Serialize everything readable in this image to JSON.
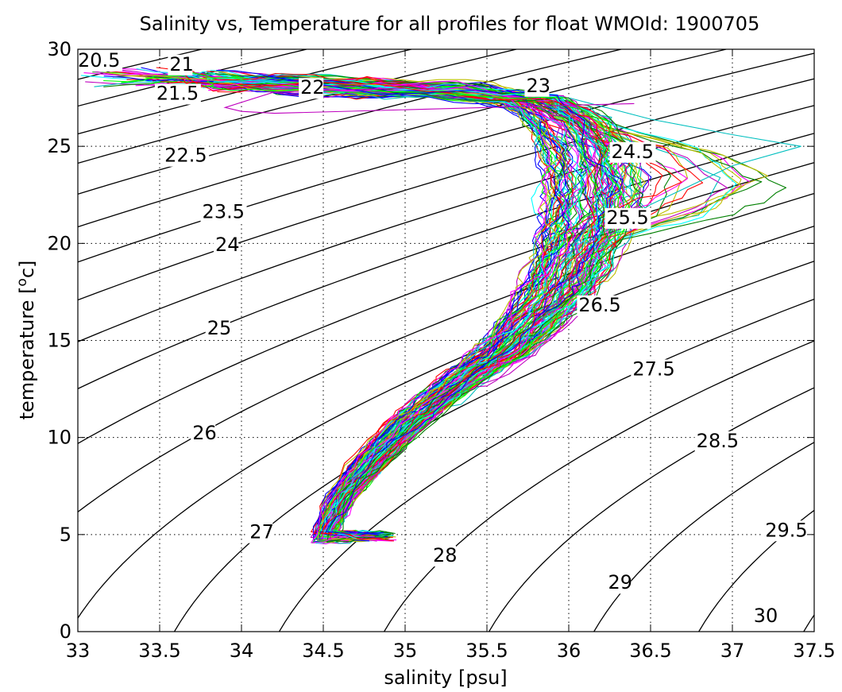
{
  "chart_data": {
    "type": "line",
    "title": "Salinity vs, Temperature for all profiles for float WMOId: 1900705",
    "xlabel": "salinity [psu]",
    "ylabel_main": "temperature [",
    "ylabel_sup": "o",
    "ylabel_tail": "c]",
    "xlim": [
      33,
      37.5
    ],
    "ylim": [
      0,
      30
    ],
    "xticks": [
      33,
      33.5,
      34,
      34.5,
      35,
      35.5,
      36,
      36.5,
      37,
      37.5
    ],
    "xtick_labels": [
      "33",
      "33.5",
      "34",
      "34.5",
      "35",
      "35.5",
      "36",
      "36.5",
      "37",
      "37.5"
    ],
    "yticks": [
      0,
      5,
      10,
      15,
      20,
      25,
      30
    ],
    "ytick_labels": [
      "0",
      "5",
      "10",
      "15",
      "20",
      "25",
      "30"
    ],
    "grid": true,
    "density_contours": {
      "color": "#000000",
      "levels": [
        20.5,
        21,
        21.5,
        22,
        22.5,
        23,
        23.5,
        24,
        24.5,
        25,
        25.5,
        26,
        26.5,
        27,
        27.5,
        28,
        28.5,
        29,
        29.5,
        30
      ],
      "labels": [
        {
          "text": "20.5",
          "s": 33.0,
          "t": 29.1
        },
        {
          "text": "21",
          "s": 33.56,
          "t": 28.9
        },
        {
          "text": "21.5",
          "s": 33.48,
          "t": 27.4
        },
        {
          "text": "22",
          "s": 34.36,
          "t": 27.7
        },
        {
          "text": "22.5",
          "s": 33.53,
          "t": 24.2
        },
        {
          "text": "23",
          "s": 35.74,
          "t": 27.8
        },
        {
          "text": "23.5",
          "s": 33.76,
          "t": 21.3
        },
        {
          "text": "24",
          "s": 33.84,
          "t": 19.6
        },
        {
          "text": "24.5",
          "s": 36.26,
          "t": 24.4
        },
        {
          "text": "25",
          "s": 33.79,
          "t": 15.3
        },
        {
          "text": "25.5",
          "s": 36.23,
          "t": 21.0
        },
        {
          "text": "26",
          "s": 33.7,
          "t": 9.9
        },
        {
          "text": "26.5",
          "s": 36.06,
          "t": 16.5
        },
        {
          "text": "27",
          "s": 34.05,
          "t": 4.8
        },
        {
          "text": "27.5",
          "s": 36.39,
          "t": 13.2
        },
        {
          "text": "28",
          "s": 35.17,
          "t": 3.6
        },
        {
          "text": "28.5",
          "s": 36.78,
          "t": 9.5
        },
        {
          "text": "29",
          "s": 36.24,
          "t": 2.2
        },
        {
          "text": "29.5",
          "s": 37.2,
          "t": 4.9
        },
        {
          "text": "30",
          "s": 37.13,
          "t": 0.5
        }
      ]
    },
    "profiles": {
      "count": 120,
      "colors": [
        "#ff0000",
        "#00ff00",
        "#0000ff",
        "#00bfbf",
        "#bf00bf",
        "#bfbf00",
        "#008000",
        "#ff00ff",
        "#00ffff"
      ],
      "mean_path": [
        [
          34.5,
          4.9
        ],
        [
          34.6,
          6.8
        ],
        [
          34.8,
          8.8
        ],
        [
          35.0,
          10.6
        ],
        [
          35.2,
          12.0
        ],
        [
          35.4,
          13.3
        ],
        [
          35.6,
          14.5
        ],
        [
          35.75,
          15.8
        ],
        [
          35.9,
          17.2
        ],
        [
          36.0,
          18.7
        ],
        [
          36.07,
          20.2
        ],
        [
          36.12,
          21.7
        ],
        [
          36.14,
          23.2
        ],
        [
          36.1,
          24.7
        ],
        [
          36.0,
          26.2
        ],
        [
          35.8,
          27.3
        ],
        [
          35.4,
          27.8
        ],
        [
          34.8,
          28.0
        ],
        [
          34.3,
          28.2
        ],
        [
          33.8,
          28.4
        ]
      ],
      "width_path": [
        0.06,
        0.08,
        0.09,
        0.1,
        0.11,
        0.13,
        0.16,
        0.18,
        0.2,
        0.22,
        0.24,
        0.26,
        0.26,
        0.25,
        0.22,
        0.18,
        0.12,
        0.1,
        0.1,
        0.1
      ],
      "notable_extremes": {
        "max_salinity": 37.42,
        "max_salinity_temperature": 25.0,
        "min_salinity_surface": 33.0,
        "min_temperature": 4.6
      }
    }
  }
}
